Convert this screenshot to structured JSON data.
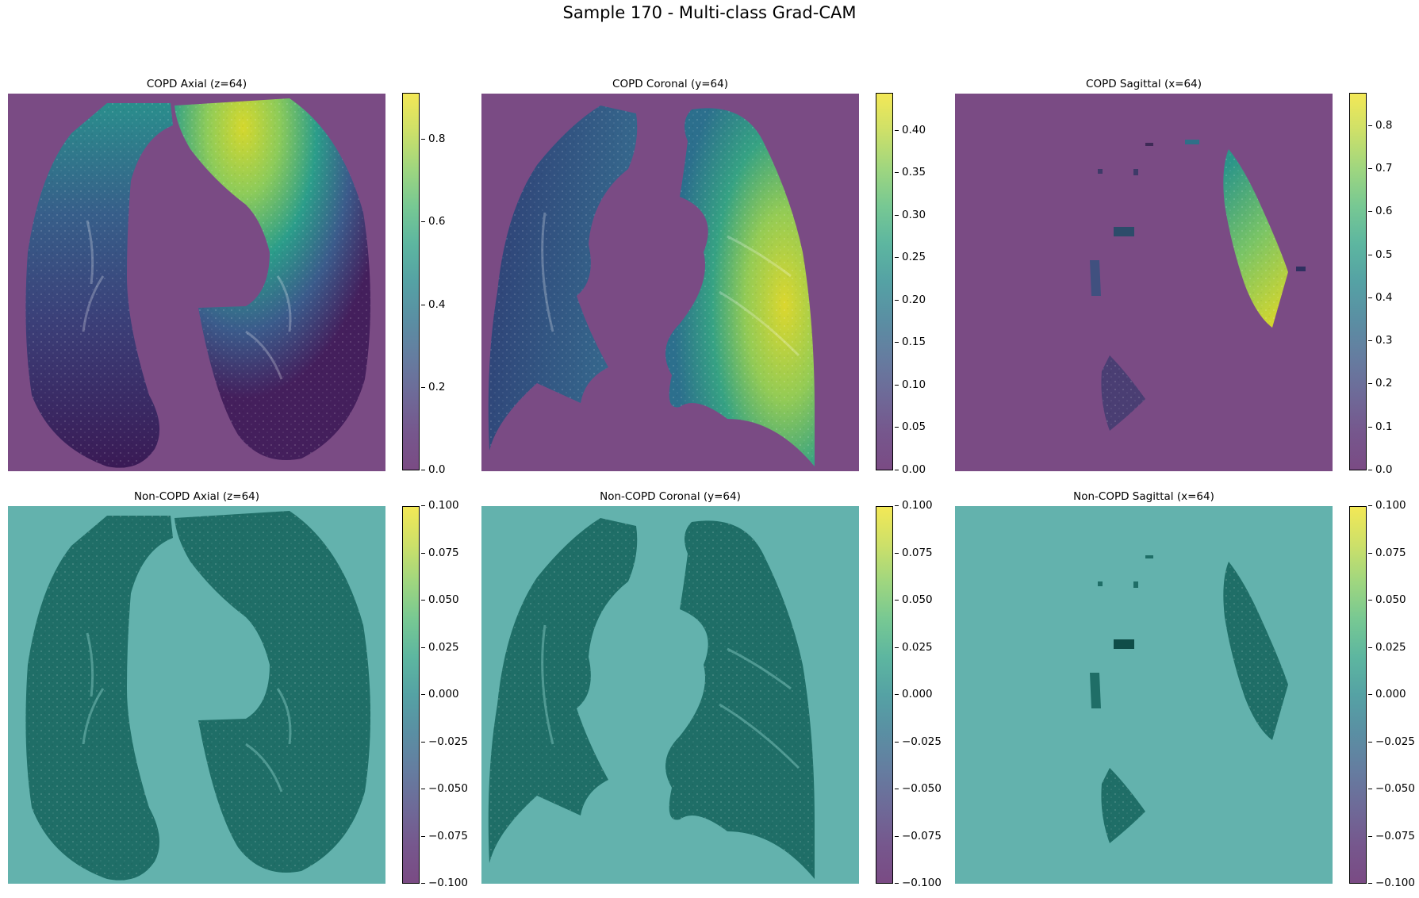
{
  "title": "Sample 170 - Multi-class Grad-CAM",
  "colors": {
    "background_copd": "#7a4b84",
    "background_noncopd": "#63b2ad",
    "lung_noncopd": "#1f6e67",
    "colormap": "viridis (alpha overlay)"
  },
  "panels": [
    {
      "title": "COPD Axial (z=64)",
      "colorbar_ticks": [
        "0.0",
        "0.2",
        "0.4",
        "0.6",
        "0.8"
      ]
    },
    {
      "title": "COPD Coronal (y=64)",
      "colorbar_ticks": [
        "0.00",
        "0.05",
        "0.10",
        "0.15",
        "0.20",
        "0.25",
        "0.30",
        "0.35",
        "0.40"
      ]
    },
    {
      "title": "COPD Sagittal (x=64)",
      "colorbar_ticks": [
        "0.0",
        "0.1",
        "0.2",
        "0.3",
        "0.4",
        "0.5",
        "0.6",
        "0.7",
        "0.8"
      ]
    },
    {
      "title": "Non-COPD Axial (z=64)",
      "colorbar_ticks": [
        "−0.100",
        "−0.075",
        "−0.050",
        "−0.025",
        "0.000",
        "0.025",
        "0.050",
        "0.075",
        "0.100"
      ]
    },
    {
      "title": "Non-COPD Coronal (y=64)",
      "colorbar_ticks": [
        "−0.100",
        "−0.075",
        "−0.050",
        "−0.025",
        "0.000",
        "0.025",
        "0.050",
        "0.075",
        "0.100"
      ]
    },
    {
      "title": "Non-COPD Sagittal (x=64)",
      "colorbar_ticks": [
        "−0.100",
        "−0.075",
        "−0.050",
        "−0.025",
        "0.000",
        "0.025",
        "0.050",
        "0.075",
        "0.100"
      ]
    }
  ]
}
